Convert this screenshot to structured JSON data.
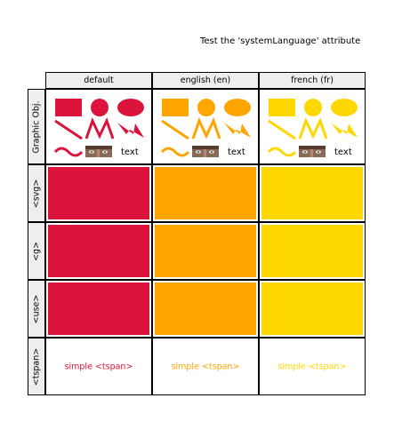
{
  "title": "Test the 'systemLanguage' attribute",
  "columns": [
    {
      "label": "default",
      "color": "#dc143c"
    },
    {
      "label": "english (en)",
      "color": "#ffa500"
    },
    {
      "label": "french (fr)",
      "color": "#ffd700"
    }
  ],
  "rows": [
    "Graphic Obj.",
    "<svg>",
    "<g>",
    "<use>",
    "<tspan>"
  ],
  "graphic_text": "text",
  "tspan_text": "simple <tspan>",
  "icons": [
    "rect-shape-icon",
    "circle-shape-icon",
    "ellipse-shape-icon",
    "line-shape-icon",
    "polyline-shape-icon",
    "polygon-shape-icon",
    "path-wave-icon",
    "face-image-icon"
  ]
}
